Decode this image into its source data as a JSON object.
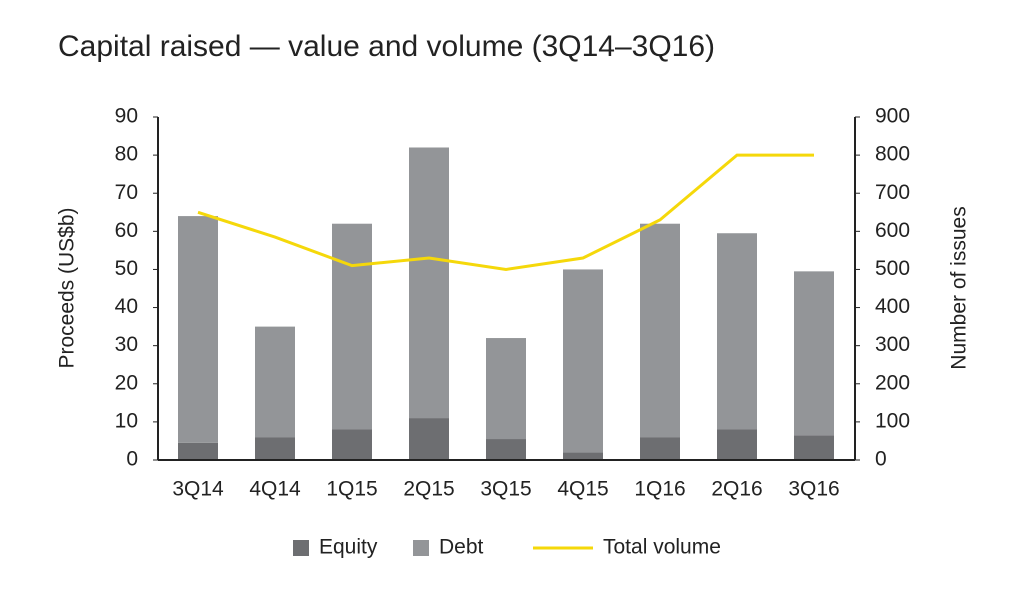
{
  "chart_data": {
    "type": "bar",
    "stacked": true,
    "title": "Capital raised — value and volume (3Q14–3Q16)",
    "ylabel": "Proceeds (US$b)",
    "y2label": "Number of issues",
    "categories": [
      "3Q14",
      "4Q14",
      "1Q15",
      "2Q15",
      "3Q15",
      "4Q15",
      "1Q16",
      "2Q16",
      "3Q16"
    ],
    "series": [
      {
        "name": "Equity",
        "type": "bar",
        "color": "#6d6e71",
        "values": [
          4.5,
          6,
          8,
          11,
          5.5,
          2,
          6,
          8,
          6.5
        ]
      },
      {
        "name": "Debt",
        "type": "bar",
        "color": "#939598",
        "values": [
          59.5,
          29,
          54,
          71,
          26.5,
          48,
          56,
          51.5,
          43
        ]
      },
      {
        "name": "Total volume",
        "type": "line",
        "axis": "y2",
        "color": "#f5d80a",
        "values": [
          650,
          585,
          510,
          530,
          500,
          530,
          630,
          800,
          800
        ]
      }
    ],
    "ylim": [
      0,
      90
    ],
    "yticks": [
      0,
      10,
      20,
      30,
      40,
      50,
      60,
      70,
      80,
      90
    ],
    "y2lim": [
      0,
      900
    ],
    "y2ticks": [
      0,
      100,
      200,
      300,
      400,
      500,
      600,
      700,
      800,
      900
    ],
    "legend": "bottom"
  }
}
